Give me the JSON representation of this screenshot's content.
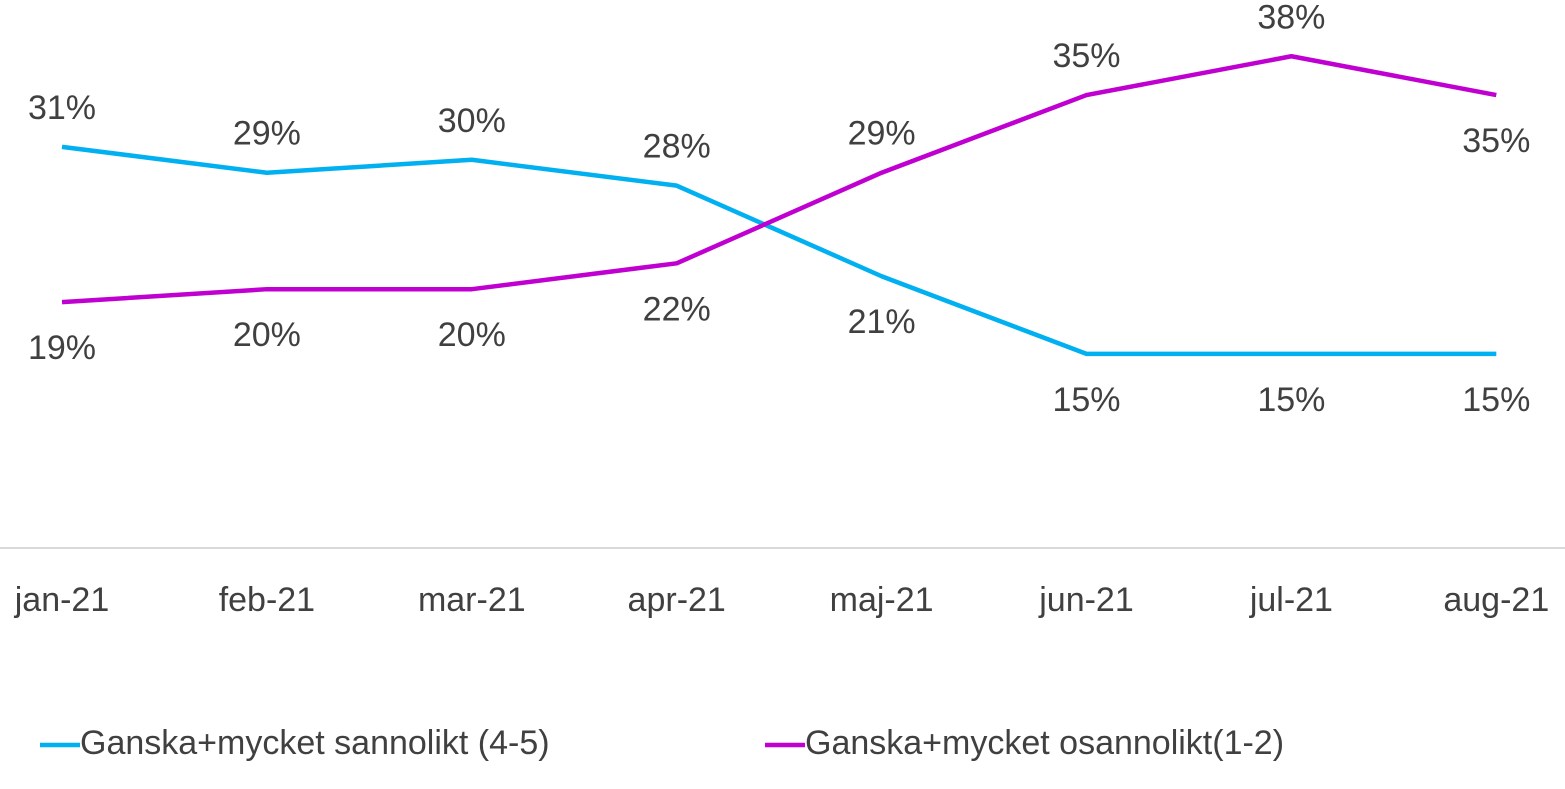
{
  "chart_data": {
    "type": "line",
    "categories": [
      "jan-21",
      "feb-21",
      "mar-21",
      "apr-21",
      "maj-21",
      "jun-21",
      "jul-21",
      "aug-21"
    ],
    "series": [
      {
        "name": "Ganska+mycket sannolikt (4-5)",
        "color": "#00b0f0",
        "values": [
          31,
          29,
          30,
          28,
          21,
          15,
          15,
          15
        ],
        "value_labels": [
          "31%",
          "29%",
          "30%",
          "28%",
          "21%",
          "15%",
          "15%",
          "15%"
        ]
      },
      {
        "name": "Ganska+mycket osannolikt(1-2)",
        "color": "#c000d0",
        "values": [
          19,
          20,
          20,
          22,
          29,
          35,
          38,
          35
        ],
        "value_labels": [
          "19%",
          "20%",
          "20%",
          "22%",
          "29%",
          "35%",
          "38%",
          "35%"
        ]
      }
    ],
    "ylim": [
      0,
      42
    ],
    "legend": "bottom"
  }
}
